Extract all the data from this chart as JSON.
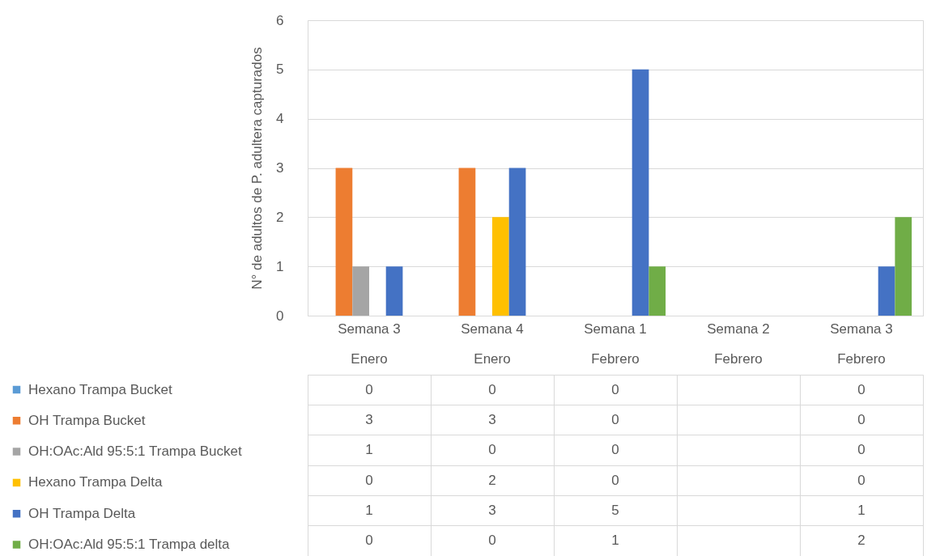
{
  "chart_data": {
    "type": "bar",
    "ylabel": "N° de adultos de P. adultera capturados",
    "categories": [
      "Semana 3\nEnero",
      "Semana 4\nEnero",
      "Semana 1\nFebrero",
      "Semana 2\nFebrero",
      "Semana 3\nFebrero"
    ],
    "series": [
      {
        "name": "Hexano Trampa Bucket",
        "color": "#5b9bd5",
        "values": [
          0,
          0,
          0,
          null,
          0
        ]
      },
      {
        "name": "OH Trampa Bucket",
        "color": "#ed7d31",
        "values": [
          3,
          3,
          0,
          null,
          0
        ]
      },
      {
        "name": "OH:OAc:Ald 95:5:1 Trampa Bucket",
        "color": "#a5a5a5",
        "values": [
          1,
          0,
          0,
          null,
          0
        ]
      },
      {
        "name": "Hexano Trampa Delta",
        "color": "#ffc000",
        "values": [
          0,
          2,
          0,
          null,
          0
        ]
      },
      {
        "name": "OH Trampa Delta",
        "color": "#4472c4",
        "values": [
          1,
          3,
          5,
          null,
          1
        ]
      },
      {
        "name": "OH:OAc:Ald 95:5:1 Trampa delta",
        "color": "#70ad47",
        "values": [
          0,
          0,
          1,
          null,
          2
        ]
      }
    ],
    "ylim": [
      0,
      6
    ],
    "yticks": [
      0,
      1,
      2,
      3,
      4,
      5,
      6
    ],
    "grid": "y",
    "legend": "bottom",
    "data_labels": true
  }
}
